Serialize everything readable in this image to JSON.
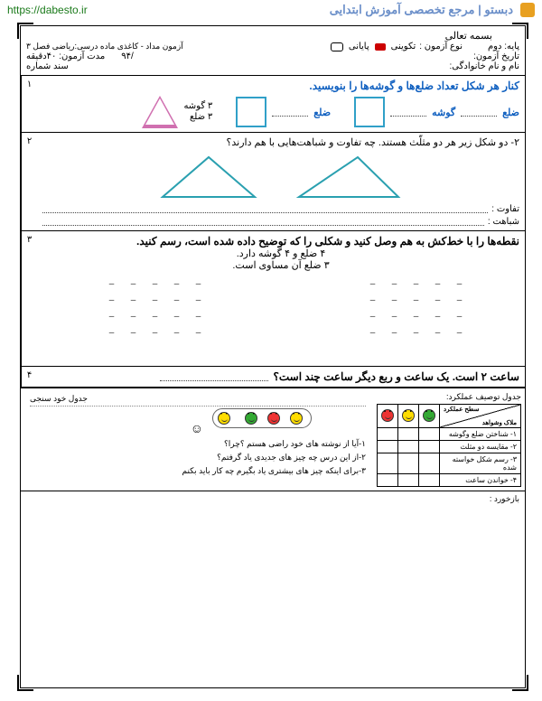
{
  "topbar": {
    "site_title": "دبستو | مرجع تخصصی آموزش ابتدایی",
    "url": "https://dabesto.ir"
  },
  "header": {
    "bismeh": "بسمه تعالی",
    "exam_title": "آزمون مداد - کاغذی ماده درسی:ریاضی فصل ۳",
    "grade_label": "پایه: دوم",
    "type_label": "نوع آزمون :",
    "type_formative": "تکوینی",
    "type_final": "پایانی",
    "date_label": "تاریخ آزمون:",
    "date_value": "/۹۴",
    "duration_label": "مدت آزمون: ۴۰دقیقه",
    "name_label": "نام و نام خانوادگی:",
    "sheet_label": "سند شماره"
  },
  "q1": {
    "num": "۱",
    "title": "کنار هر شکل تعداد ضلع‌ها و گوشه‌ها را بنویسید.",
    "side": "ضلع",
    "corner": "گوشه",
    "tri_corner": "۳ گوشه",
    "tri_side": "۳ ضلع",
    "colors": {
      "title": "#1060c0",
      "square": "#30a0c8",
      "triangle": "#d070b0"
    }
  },
  "q2": {
    "num": "۲",
    "text": "۲- دو شکل زیر هر دو مثلّث هستند. چه تفاوت و شباهت‌هایی با هم دارند؟",
    "diff": "تفاوت :",
    "sim": "شباهت :",
    "tri_color": "#2aa0b0"
  },
  "q3": {
    "num": "۳",
    "title": "نقطه‌ها را با خط‌کش به هم وصل کنید و شکلی را که توضیح داده شده است، رسم کنید.",
    "sub1": "۴ ضلع و ۴ گوشه دارد.",
    "sub2": "۳ ضلع آن مساوی است."
  },
  "q4": {
    "num": "۴",
    "text": "ساعت ۲ است. یک ساعت و ربع دیگر ساعت چند است؟"
  },
  "footer": {
    "desc_title": "جدول توصیف عملکرد:",
    "self_title": "جدول خود سنجی",
    "level": "سطح عملکرد",
    "evidence": "ملاک وشواهد",
    "rows": [
      "۱- شناختن ضلع وگوشه",
      "۲- مقایسه دو مثلث",
      "۳- رسم شکل خواسته شده",
      "۴- خواندن ساعت"
    ],
    "self_q1": "۱-آیا از نوشته های خود راضی هستم ؟چرا؟",
    "self_q2": "۲-از این درس چه چیز های جدیدی یاد گرفتم؟",
    "self_q3": "۳-برای اینکه چیز های بیشتری یاد بگیرم چه کار باید بکنم",
    "feedback": "بازخورد :",
    "face_colors": {
      "green": "#33aa33",
      "yellow": "#ffdd00",
      "red": "#ee3333"
    }
  }
}
